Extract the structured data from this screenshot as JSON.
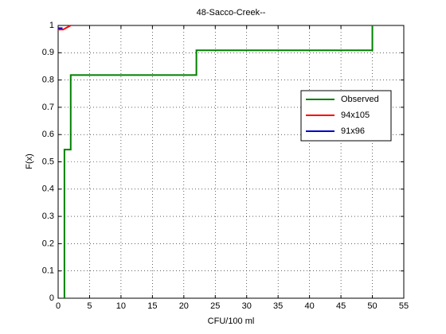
{
  "chart_data": {
    "type": "line",
    "title": "48-Sacco-Creek--",
    "xlabel": "CFU/100 ml",
    "ylabel": "F(x)",
    "series": [
      {
        "name": "Observed",
        "color": "#008000",
        "x": [
          1,
          1,
          2,
          2,
          22,
          22,
          50,
          50
        ],
        "values": [
          0,
          0.545,
          0.545,
          0.818,
          0.818,
          0.909,
          0.909,
          1
        ]
      },
      {
        "name": "94x105",
        "color": "#ff0000",
        "x": [
          0,
          0.8,
          2
        ],
        "values": [
          0.985,
          0.985,
          1
        ]
      },
      {
        "name": "91x96",
        "color": "#0000cc",
        "x": [
          0,
          0.7
        ],
        "values": [
          0.99,
          0.99
        ]
      }
    ],
    "xlim": [
      0,
      55
    ],
    "xticks": [
      0,
      5,
      10,
      15,
      20,
      25,
      30,
      35,
      40,
      45,
      50,
      55
    ],
    "ylim": [
      0,
      1
    ],
    "yticks": [
      0,
      0.1,
      0.2,
      0.3,
      0.4,
      0.5,
      0.6,
      0.7,
      0.8,
      0.9,
      1
    ],
    "grid": true,
    "legend": "east"
  }
}
